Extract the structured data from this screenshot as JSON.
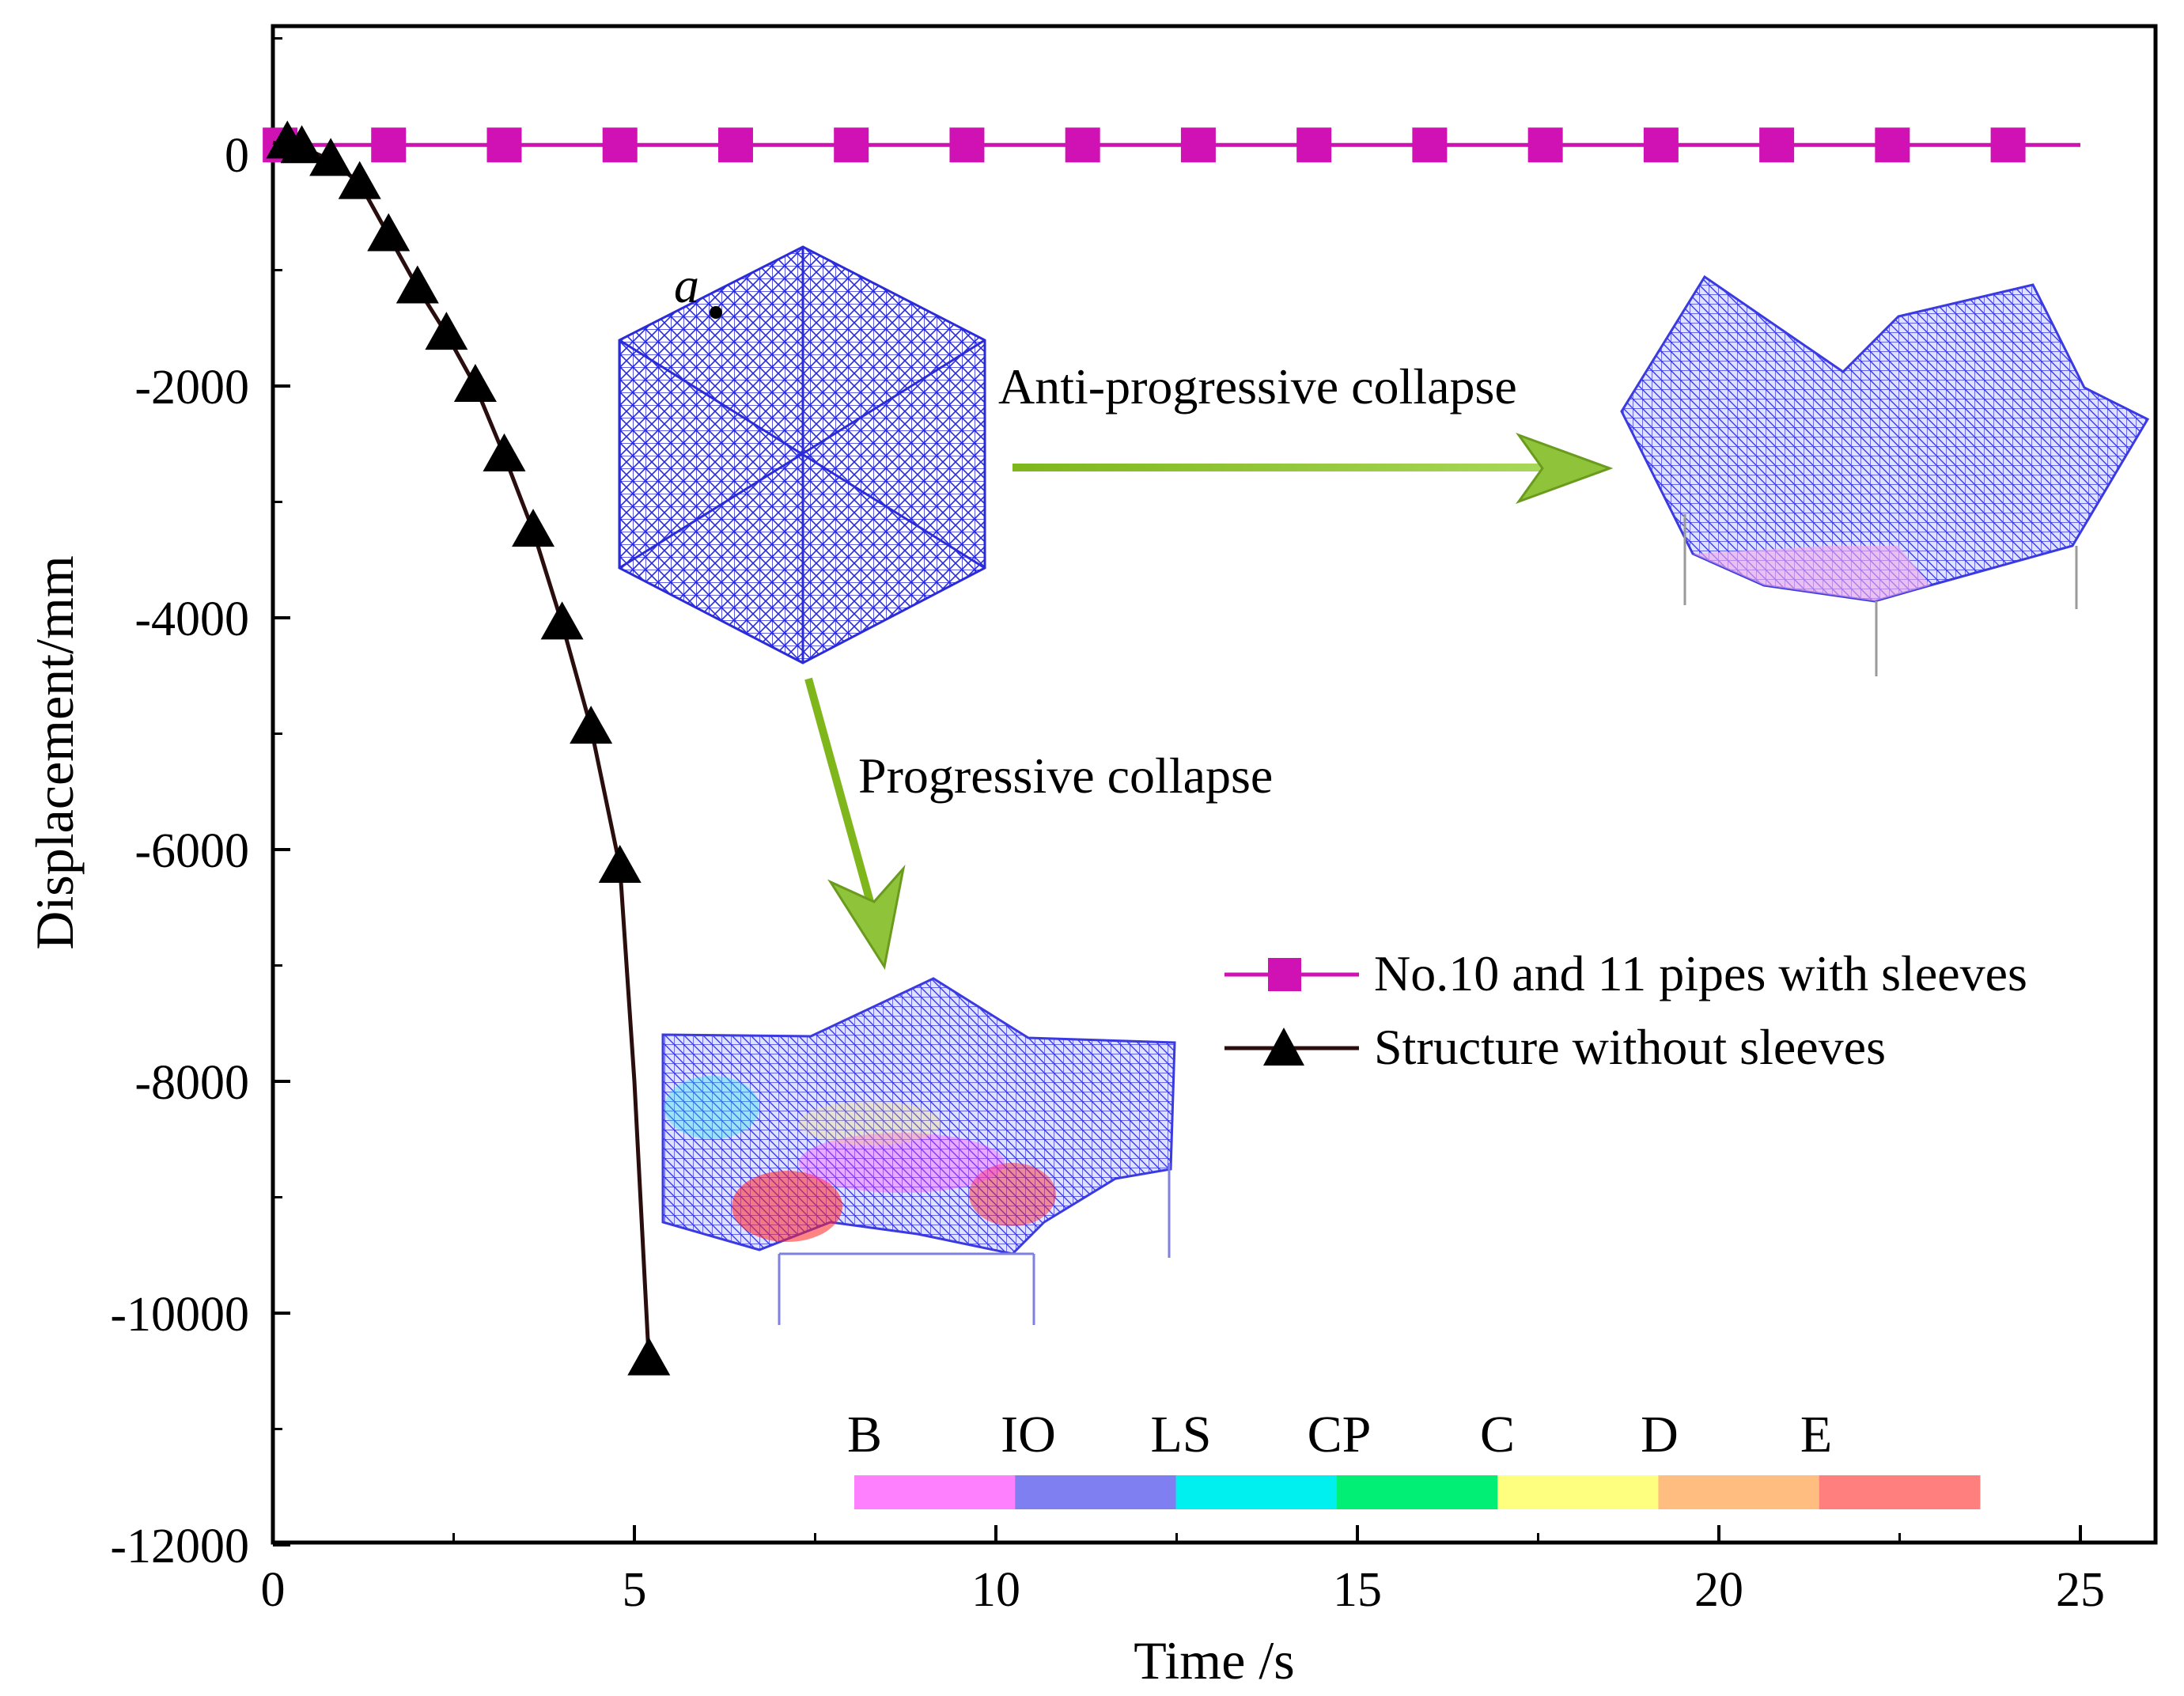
{
  "chart_data": {
    "type": "line",
    "xlabel": "Time /s",
    "ylabel": "Displacement/mm",
    "xlim": [
      0,
      26
    ],
    "ylim": [
      -12000,
      1200
    ],
    "xticks": [
      0,
      5,
      10,
      15,
      20,
      25
    ],
    "yticks": [
      0,
      -2000,
      -4000,
      -6000,
      -8000,
      -10000,
      -12000
    ],
    "grid": false,
    "legend_position": "middle-right",
    "series": [
      {
        "name": "No.10 and 11 pipes with sleeves",
        "color": "#d012b4",
        "marker": "square",
        "x": [
          0,
          25
        ],
        "y": [
          80,
          80
        ],
        "marker_x": [
          0.1,
          1.6,
          3.2,
          4.8,
          6.4,
          8.0,
          9.6,
          11.2,
          12.8,
          14.4,
          16.0,
          17.6,
          19.2,
          20.8,
          22.4,
          24.0
        ]
      },
      {
        "name": "Structure without sleeves",
        "color": "#2a0e0e",
        "marker": "triangle",
        "x": [
          0,
          0.4,
          0.8,
          1.2,
          1.6,
          2.0,
          2.4,
          2.8,
          3.2,
          3.6,
          4.0,
          4.4,
          4.8,
          5.0,
          5.2
        ],
        "y": [
          100,
          60,
          -50,
          -250,
          -700,
          -1150,
          -1550,
          -2000,
          -2600,
          -3250,
          -4050,
          -4950,
          -6150,
          -8000,
          -10400
        ],
        "marker_x": [
          0.2,
          0.4,
          0.8,
          1.2,
          1.6,
          2.0,
          2.4,
          2.8,
          3.2,
          3.6,
          4.0,
          4.4,
          4.8,
          5.2
        ],
        "marker_y": [
          100,
          60,
          -50,
          -250,
          -700,
          -1150,
          -1550,
          -2000,
          -2600,
          -3250,
          -4050,
          -4950,
          -6150,
          -10400
        ]
      }
    ],
    "annotations": {
      "point_label": "a",
      "anti_collapse": "Anti-progressive collapse",
      "progressive_collapse": "Progressive collapse"
    },
    "performance_levels": {
      "labels": [
        "B",
        "IO",
        "LS",
        "CP",
        "C",
        "D",
        "E"
      ],
      "colors": [
        "#ff80ff",
        "#7f7ff2",
        "#00f0f0",
        "#00ef74",
        "#ffff7f",
        "#ffbe7f",
        "#ff7f7f"
      ]
    }
  }
}
